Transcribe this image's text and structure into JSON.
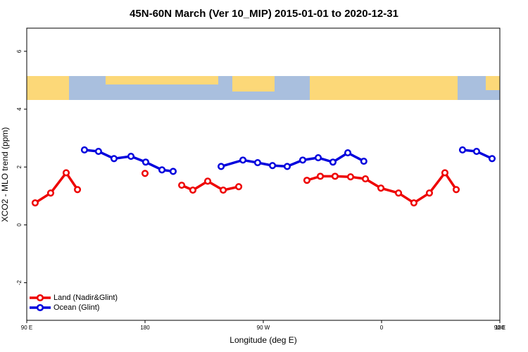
{
  "chart_data": {
    "type": "line",
    "title": "45N-60N March (Ver 10_MIP)   2015-01-01 to 2020-12-31",
    "xlabel": "Longitude (deg E)",
    "ylabel": "XCO2 - MLO trend (ppm)",
    "xlim": [
      90,
      450
    ],
    "xticks": [
      {
        "value": 90,
        "label": "90 E"
      },
      180,
      {
        "value": 270,
        "label": "90 W"
      },
      {
        "value": 360,
        "label": "0"
      },
      {
        "value": 450,
        "label": "90 E"
      },
      {
        "value": 540,
        "label": "180"
      }
    ],
    "ylim": [
      -3.3,
      6.8
    ],
    "yticks": [
      -2,
      0,
      2,
      4,
      6
    ],
    "legend": "bottomleft",
    "series": [
      {
        "name": "Land (Nadir&Glint)",
        "color": "#ee0000",
        "x": [
          96.4,
          108.2,
          120,
          128.6,
          null,
          180,
          null,
          207.9,
          216.4,
          227.7,
          239.5,
          251.3,
          null,
          303.2,
          313.4,
          324.6,
          336.4,
          347.7,
          359.5,
          372.9,
          384.6,
          396.4,
          408.2,
          416.8
        ],
        "values": [
          0.76,
          1.1,
          1.8,
          1.22,
          null,
          1.78,
          null,
          1.37,
          1.2,
          1.51,
          1.2,
          1.32,
          null,
          1.54,
          1.68,
          1.68,
          1.66,
          1.59,
          1.27,
          1.1,
          0.76,
          1.1,
          1.8,
          1.22
        ]
      },
      {
        "name": "Ocean (Glint)",
        "color": "#0000dd",
        "x": [
          133.9,
          144.6,
          156.4,
          169.3,
          180.5,
          192.9,
          201.4,
          null,
          237.9,
          254.5,
          265.7,
          277,
          288.2,
          300,
          311.8,
          323,
          334.3,
          346.5,
          null,
          421.6,
          432.3,
          444.1
        ],
        "values": [
          2.59,
          2.54,
          2.29,
          2.37,
          2.17,
          1.9,
          1.85,
          null,
          2.02,
          2.24,
          2.15,
          2.05,
          2.02,
          2.24,
          2.32,
          2.17,
          2.49,
          2.2,
          null,
          2.59,
          2.54,
          2.29
        ]
      }
    ]
  }
}
